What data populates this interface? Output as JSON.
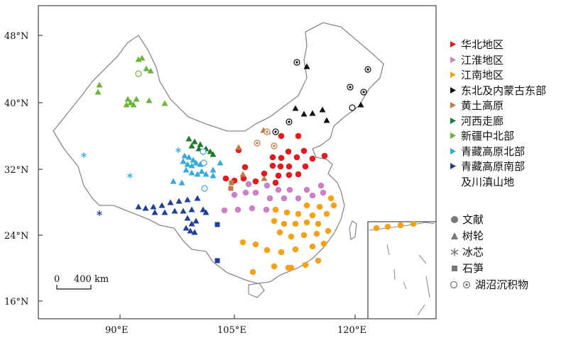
{
  "axes": {
    "lat_labels": [
      "48°N",
      "40°N",
      "32°N",
      "24°N",
      "16°N"
    ],
    "lon_labels": [
      "90°E",
      "105°E",
      "120°E"
    ]
  },
  "scale_bar": {
    "zero": "0",
    "dist": "400 km"
  },
  "regions": [
    {
      "label": "华北地区",
      "color": "#e41a1c"
    },
    {
      "label": "江淮地区",
      "color": "#cc80c8"
    },
    {
      "label": "江南地区",
      "color": "#f4a21c"
    },
    {
      "label": "东北及内蒙古东部",
      "color": "#111111"
    },
    {
      "label": "黄土高原",
      "color": "#c07a45"
    },
    {
      "label": "河西走廊",
      "color": "#1f7a2e"
    },
    {
      "label": "新疆中北部",
      "color": "#6ab43a"
    },
    {
      "label": "青藏高原北部",
      "color": "#33aadd"
    },
    {
      "label": "青藏高原南部",
      "label2": "及川滇山地",
      "color": "#1f3f99"
    }
  ],
  "proxies": [
    {
      "label": "文献",
      "icon": "circle-icon"
    },
    {
      "label": "树轮",
      "icon": "triangle-icon"
    },
    {
      "label": "冰芯",
      "icon": "asterisk-icon"
    },
    {
      "label": "石笋",
      "icon": "square-icon"
    },
    {
      "label": "湖沼沉积物",
      "icon": "ring-icon"
    }
  ]
}
